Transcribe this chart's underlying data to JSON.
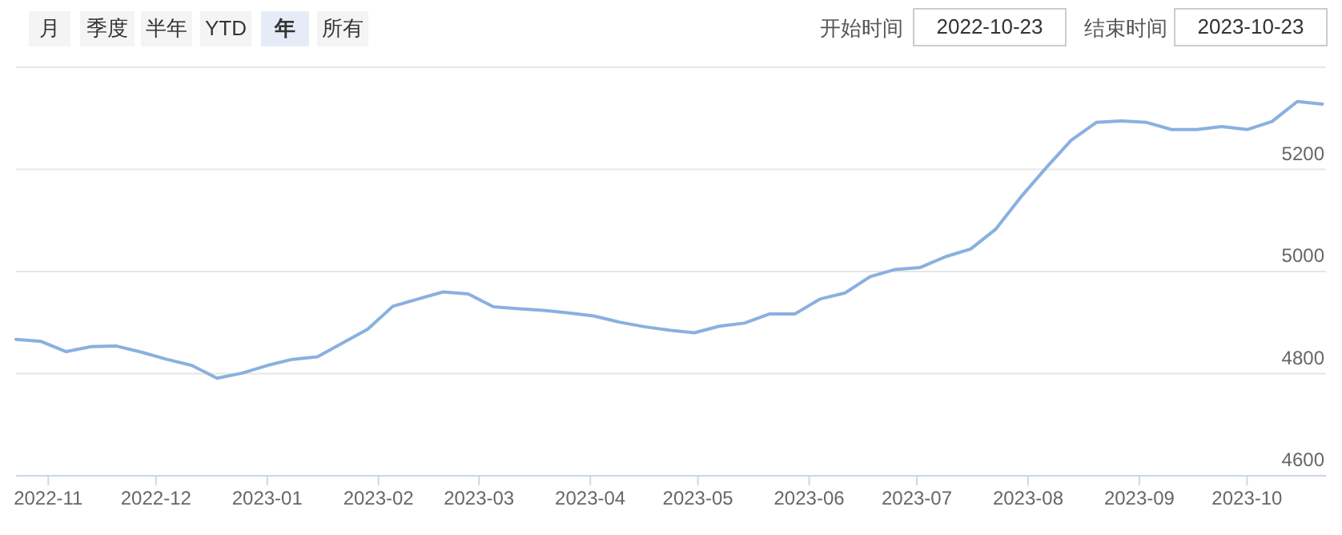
{
  "chart_data": {
    "type": "line",
    "annotations": [
      "月",
      "季度",
      "半年",
      "YTD",
      "年",
      "所有",
      "开始时间",
      "2022-10-23",
      "结束时间",
      "2023-10-23"
    ],
    "x": [
      "2022-10-23",
      "2022-10-30",
      "2022-11-06",
      "2022-11-13",
      "2022-11-20",
      "2022-11-27",
      "2022-12-04",
      "2022-12-11",
      "2022-12-18",
      "2022-12-25",
      "2023-01-01",
      "2023-01-08",
      "2023-01-15",
      "2023-01-22",
      "2023-01-29",
      "2023-02-05",
      "2023-02-12",
      "2023-02-19",
      "2023-02-26",
      "2023-03-05",
      "2023-03-12",
      "2023-03-19",
      "2023-03-26",
      "2023-04-02",
      "2023-04-09",
      "2023-04-16",
      "2023-04-23",
      "2023-04-30",
      "2023-05-07",
      "2023-05-14",
      "2023-05-21",
      "2023-05-28",
      "2023-06-04",
      "2023-06-11",
      "2023-06-18",
      "2023-06-25",
      "2023-07-02",
      "2023-07-09",
      "2023-07-16",
      "2023-07-23",
      "2023-07-30",
      "2023-08-06",
      "2023-08-13",
      "2023-08-20",
      "2023-08-27",
      "2023-09-03",
      "2023-09-10",
      "2023-09-17",
      "2023-09-24",
      "2023-10-01",
      "2023-10-08",
      "2023-10-15",
      "2023-10-22"
    ],
    "series": [
      {
        "color": "#89b0e0",
        "values": [
          4867,
          4863,
          4843,
          4853,
          4854,
          4842,
          4828,
          4816,
          4791,
          4801,
          4816,
          4828,
          4833,
          4860,
          4887,
          4932,
          4946,
          4960,
          4956,
          4931,
          4927,
          4924,
          4919,
          4913,
          4901,
          4892,
          4885,
          4880,
          4893,
          4899,
          4917,
          4917,
          4946,
          4958,
          4990,
          5004,
          5008,
          5029,
          5044,
          5083,
          5146,
          5203,
          5257,
          5292,
          5295,
          5292,
          5278,
          5278,
          5284,
          5278,
          5294,
          5333,
          5328
        ]
      }
    ],
    "xlim": [
      "2022-10-23",
      "2023-10-23"
    ],
    "xticks": [
      "2022-11",
      "2022-12",
      "2023-01",
      "2023-02",
      "2023-03",
      "2023-04",
      "2023-05",
      "2023-06",
      "2023-07",
      "2023-08",
      "2023-09",
      "2023-10"
    ],
    "ylim": [
      4600,
      5400
    ],
    "yticks": [
      4600,
      4800,
      5000,
      5200,
      {
        "value": 5400,
        "label": null
      }
    ],
    "grid": "y",
    "marker": "none",
    "line_style": "solid"
  }
}
